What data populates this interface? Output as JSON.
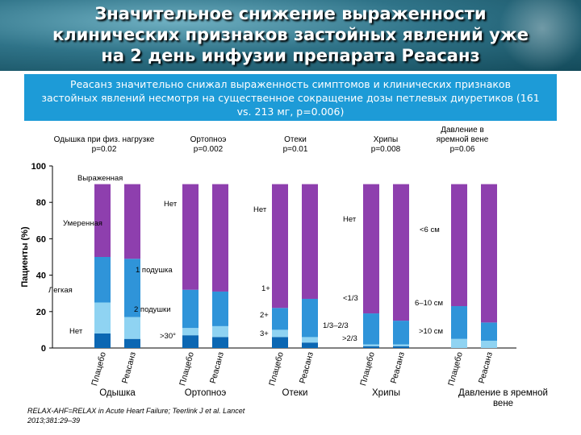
{
  "header": {
    "title_lines": [
      "Значительное снижение выраженности",
      "клинических признаков застойных явлений уже",
      "на 2 день инфузии препарата Реасанз"
    ]
  },
  "summary": {
    "lines": [
      "Реасанз значительно снижал выраженность симптомов и клинических признаков",
      "застойных явлений несмотря на существенное сокращение дозы петлевых диуретиков (161",
      "vs. 213 мг, p=0.006)"
    ]
  },
  "reference": {
    "lines": [
      "RELAX-AHF=RELAX in Acute Heart Failure; Teerlink J et al. Lancet",
      "2013;381:29–39"
    ]
  },
  "chart_data": {
    "type": "bar",
    "stacked": true,
    "ylabel": "Пациенты (%)",
    "ylim": [
      0,
      100
    ],
    "yticks": [
      0,
      20,
      40,
      60,
      80,
      100
    ],
    "colors": {
      "none": "#8e3fae",
      "mild": "#2f94d9",
      "moderate": "#8fd3f2",
      "severe": "#0b67b3"
    },
    "bar_labels": [
      "Плацебо",
      "Реасанз"
    ],
    "groups": [
      {
        "name": "Одышка",
        "pvalue_lines": [
          "Одышка при физ. нагрузке",
          "p=0.02"
        ],
        "segment_labels": [
          "Нет",
          "Легкая",
          "Умеренная",
          "Выраженная"
        ],
        "bars": [
          {
            "bar": "Плацебо",
            "segments": [
              8,
              17,
              25,
              40
            ]
          },
          {
            "bar": "Реасанз",
            "segments": [
              5,
              12,
              32,
              41
            ]
          }
        ]
      },
      {
        "name": "Ортопноэ",
        "pvalue_lines": [
          "Ортопноэ",
          "p=0.002"
        ],
        "segment_labels": [
          "Нет",
          "1 подушка",
          "2 подушки",
          ">30°"
        ],
        "bars": [
          {
            "bar": "Плацебо",
            "segments": [
              7,
              4,
              21,
              58
            ]
          },
          {
            "bar": "Реасанз",
            "segments": [
              6,
              6,
              19,
              59
            ]
          }
        ]
      },
      {
        "name": "Отеки",
        "pvalue_lines": [
          "Отеки",
          "p=0.01"
        ],
        "segment_labels": [
          "Нет",
          "1+",
          "2+",
          "3+"
        ],
        "bars": [
          {
            "bar": "Плацебо",
            "segments": [
              6,
              4,
              12,
              68
            ]
          },
          {
            "bar": "Реасанз",
            "segments": [
              3,
              3,
              21,
              63
            ]
          }
        ]
      },
      {
        "name": "Хрипы",
        "pvalue_lines": [
          "Хрипы",
          "p=0.008"
        ],
        "segment_labels": [
          "Нет",
          "<1/3",
          "1/3–2/3",
          ">2/3"
        ],
        "bars": [
          {
            "bar": "Плацебо",
            "segments": [
              1,
              1,
              17,
              71
            ]
          },
          {
            "bar": "Реасанз",
            "segments": [
              1,
              1,
              13,
              75
            ]
          }
        ]
      },
      {
        "name": "Давление в яремной вене",
        "pvalue_lines": [
          "Давление в",
          "яремной вене",
          "p=0.06"
        ],
        "segment_labels": [
          "<6 см",
          "6–10 см",
          ">10 см"
        ],
        "bars": [
          {
            "bar": "Плацебо",
            "segments": [
              0,
              5,
              18,
              67
            ]
          },
          {
            "bar": "Реасанз",
            "segments": [
              0,
              4,
              10,
              76
            ]
          }
        ]
      }
    ]
  }
}
